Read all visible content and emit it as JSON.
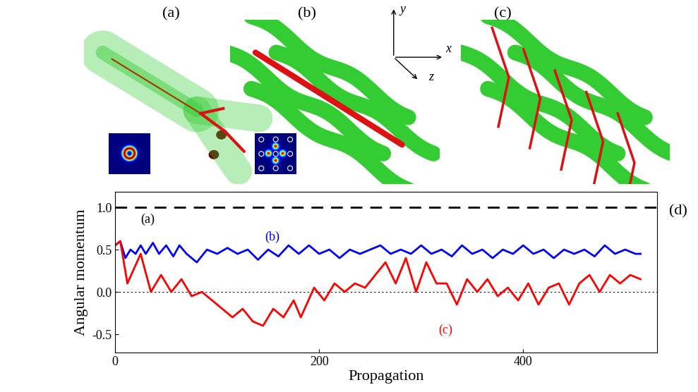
{
  "diagram": {
    "panels": [
      {
        "label": "(a)"
      },
      {
        "label": "(b)"
      },
      {
        "label": "(c)"
      }
    ],
    "axes_symbol": [
      "x",
      "y",
      "z"
    ]
  },
  "chart_data": {
    "type": "line",
    "annotations": [
      "(d)"
    ],
    "x_label": "Propagation",
    "y_label": "Angular momentum",
    "xlim": [
      0,
      531
    ],
    "ylim": [
      -0.72,
      1.18
    ],
    "xticks": [
      0,
      200,
      400
    ],
    "yticks": [
      {
        "value": -0.5,
        "label": "-0.5"
      },
      {
        "value": 0.0,
        "label": "0.0"
      },
      {
        "value": 0.5,
        "label": "0.5"
      },
      {
        "value": 1.0,
        "label": "1.0"
      }
    ],
    "series": [
      {
        "name": "(a)",
        "color": "#000000",
        "line_style": "dashed",
        "x": [
          0,
          531
        ],
        "values": [
          1.0,
          1.0
        ]
      },
      {
        "color": "#000000",
        "line_style": "dotted",
        "x": [
          0,
          531
        ],
        "values": [
          0.0,
          0.0
        ]
      },
      {
        "name": "(b)",
        "color": "#0000ff",
        "line_style": "solid",
        "x": [
          0,
          5,
          10,
          15,
          20,
          25,
          30,
          37,
          43,
          50,
          57,
          63,
          70,
          80,
          90,
          100,
          110,
          120,
          130,
          140,
          150,
          160,
          170,
          180,
          190,
          200,
          210,
          220,
          230,
          240,
          250,
          260,
          270,
          280,
          290,
          300,
          310,
          320,
          330,
          340,
          350,
          360,
          370,
          380,
          390,
          400,
          410,
          420,
          430,
          440,
          450,
          460,
          470,
          480,
          490,
          500,
          510,
          515
        ],
        "values": [
          0.55,
          0.6,
          0.4,
          0.5,
          0.45,
          0.55,
          0.45,
          0.58,
          0.45,
          0.55,
          0.42,
          0.55,
          0.45,
          0.35,
          0.5,
          0.45,
          0.52,
          0.45,
          0.5,
          0.38,
          0.5,
          0.42,
          0.55,
          0.45,
          0.55,
          0.45,
          0.5,
          0.4,
          0.5,
          0.45,
          0.5,
          0.55,
          0.45,
          0.5,
          0.45,
          0.55,
          0.45,
          0.5,
          0.42,
          0.55,
          0.45,
          0.5,
          0.4,
          0.5,
          0.45,
          0.55,
          0.45,
          0.5,
          0.4,
          0.5,
          0.45,
          0.5,
          0.42,
          0.55,
          0.45,
          0.5,
          0.45,
          0.45
        ]
      },
      {
        "name": "(c)",
        "color": "#ff0000",
        "line_style": "solid",
        "x": [
          0,
          5,
          12,
          25,
          35,
          45,
          55,
          65,
          75,
          85,
          95,
          105,
          115,
          125,
          135,
          145,
          155,
          165,
          175,
          182,
          195,
          205,
          215,
          225,
          235,
          245,
          255,
          265,
          275,
          285,
          295,
          305,
          315,
          325,
          335,
          345,
          355,
          365,
          375,
          385,
          395,
          405,
          415,
          425,
          435,
          445,
          455,
          465,
          475,
          485,
          495,
          505,
          515
        ],
        "values": [
          0.55,
          0.6,
          0.1,
          0.45,
          0.0,
          0.2,
          0.0,
          0.15,
          -0.05,
          0.0,
          -0.1,
          -0.2,
          -0.3,
          -0.2,
          -0.35,
          -0.4,
          -0.2,
          -0.3,
          -0.1,
          -0.3,
          0.05,
          -0.1,
          0.1,
          0.0,
          0.1,
          0.05,
          0.2,
          0.35,
          0.1,
          0.4,
          0.0,
          0.35,
          0.1,
          0.1,
          -0.15,
          0.15,
          0.0,
          0.15,
          -0.05,
          0.05,
          -0.1,
          0.1,
          -0.15,
          0.05,
          0.1,
          -0.15,
          0.1,
          0.2,
          0.0,
          0.2,
          0.1,
          0.2,
          0.15
        ]
      }
    ]
  }
}
